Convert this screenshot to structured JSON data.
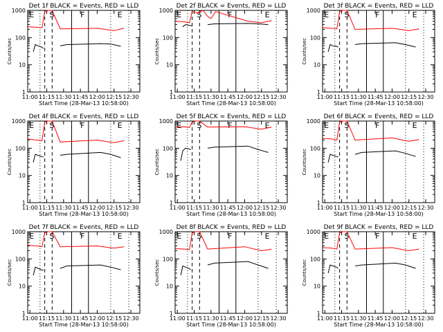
{
  "figure": {
    "title_template": "BLACK = Events, RED = LLD",
    "xlabel": "Start Time (28-Mar-13 10:58:00)",
    "ylabel": "Counts/sec",
    "x_tick_labels": [
      "11:00",
      "11:15",
      "11:30",
      "11:45",
      "12:00",
      "12:15",
      "12:30"
    ],
    "y_tick_labels": [
      "1",
      "10",
      "100",
      "1000"
    ],
    "colors": {
      "events": "#000000",
      "lld": "#ff0000",
      "background": "#ffffff"
    }
  },
  "chart_data": [
    {
      "type": "line",
      "title": "Det 1f BLACK = Events, RED = LLD",
      "detector": "Det 1f",
      "xlabel": "Start Time (28-Mar-13 10:58:00)",
      "ylabel": "Counts/sec",
      "yscale": "log",
      "ylim": [
        1,
        1000
      ],
      "xlim": [
        "10:58",
        "12:38"
      ],
      "region_labels": [
        "E",
        "S",
        "F",
        "E"
      ],
      "series": [
        {
          "name": "Events",
          "color": "#000000",
          "segments": [
            {
              "t": [
                11.05,
                11.08,
                11.12,
                11.17,
                11.2
              ],
              "v": [
                30,
                55,
                50,
                45,
                40
              ]
            },
            {
              "t": [
                11.45,
                11.55,
                12.05,
                12.2,
                12.35
              ],
              "v": [
                50,
                55,
                60,
                58,
                48
              ]
            }
          ]
        },
        {
          "name": "LLD",
          "color": "#ff0000",
          "segments": [
            {
              "t": [
                10.97,
                11.1,
                11.18,
                11.22,
                11.27,
                11.33,
                11.45,
                12.0,
                12.25,
                12.4
              ],
              "v": [
                250,
                240,
                230,
                900,
                1000,
                1000,
                210,
                220,
                180,
                220
              ]
            }
          ]
        }
      ]
    },
    {
      "type": "line",
      "title": "Det 2f BLACK = Events, RED = LLD",
      "detector": "Det 2f",
      "xlabel": "Start Time (28-Mar-13 10:58:00)",
      "ylabel": "Counts/sec",
      "yscale": "log",
      "ylim": [
        1,
        1000
      ],
      "xlim": [
        "10:58",
        "12:38"
      ],
      "region_labels": [
        "E",
        "S",
        "F",
        "E"
      ],
      "series": [
        {
          "name": "Events",
          "color": "#000000",
          "segments": [
            {
              "t": [
                11.08,
                11.12,
                11.18,
                11.22
              ],
              "v": [
                250,
                300,
                280,
                270
              ]
            },
            {
              "t": [
                11.45,
                11.55,
                12.05,
                12.2,
                12.35
              ],
              "v": [
                300,
                320,
                330,
                320,
                300
              ]
            }
          ]
        },
        {
          "name": "LLD",
          "color": "#ff0000",
          "segments": [
            {
              "t": [
                10.97,
                11.1,
                11.18,
                11.22,
                11.3,
                11.38,
                11.45,
                11.5,
                11.57,
                12.05,
                12.25,
                12.4
              ],
              "v": [
                400,
                380,
                350,
                900,
                800,
                1000,
                600,
                500,
                900,
                400,
                350,
                420
              ]
            }
          ]
        }
      ]
    },
    {
      "type": "line",
      "title": "Det 3f BLACK = Events, RED = LLD",
      "detector": "Det 3f",
      "xlabel": "Start Time (28-Mar-13 10:58:00)",
      "ylabel": "Counts/sec",
      "yscale": "log",
      "ylim": [
        1,
        1000
      ],
      "xlim": [
        "10:58",
        "12:38"
      ],
      "region_labels": [
        "E",
        "S",
        "F",
        "E"
      ],
      "series": [
        {
          "name": "Events",
          "color": "#000000",
          "segments": [
            {
              "t": [
                11.05,
                11.08,
                11.12,
                11.17,
                11.2
              ],
              "v": [
                30,
                55,
                50,
                48,
                45
              ]
            },
            {
              "t": [
                11.45,
                11.55,
                12.05,
                12.2,
                12.35
              ],
              "v": [
                55,
                60,
                65,
                55,
                45
              ]
            }
          ]
        },
        {
          "name": "LLD",
          "color": "#ff0000",
          "segments": [
            {
              "t": [
                10.97,
                11.1,
                11.18,
                11.22,
                11.27,
                11.33,
                11.45,
                12.0,
                12.25,
                12.4
              ],
              "v": [
                230,
                220,
                210,
                900,
                1000,
                1000,
                200,
                220,
                180,
                210
              ]
            }
          ]
        }
      ]
    },
    {
      "type": "line",
      "title": "Det 4f BLACK = Events, RED = LLD",
      "detector": "Det 4f",
      "xlabel": "Start Time (28-Mar-13 10:58:00)",
      "ylabel": "Counts/sec",
      "yscale": "log",
      "ylim": [
        1,
        1000
      ],
      "xlim": [
        "10:58",
        "12:38"
      ],
      "region_labels": [
        "E",
        "S",
        "F",
        "E"
      ],
      "series": [
        {
          "name": "Events",
          "color": "#000000",
          "segments": [
            {
              "t": [
                11.05,
                11.08,
                11.12,
                11.17,
                11.2
              ],
              "v": [
                30,
                60,
                55,
                50,
                48
              ]
            },
            {
              "t": [
                11.45,
                11.55,
                12.05,
                12.2,
                12.35
              ],
              "v": [
                55,
                60,
                70,
                60,
                45
              ]
            }
          ]
        },
        {
          "name": "LLD",
          "color": "#ff0000",
          "segments": [
            {
              "t": [
                10.97,
                11.1,
                11.18,
                11.22,
                11.27,
                11.33,
                11.45,
                12.0,
                12.25,
                12.4
              ],
              "v": [
                220,
                200,
                190,
                900,
                1000,
                1000,
                170,
                200,
                160,
                190
              ]
            }
          ]
        }
      ]
    },
    {
      "type": "line",
      "title": "Det 5f BLACK = Events, RED = LLD",
      "detector": "Det 5f",
      "xlabel": "Start Time (28-Mar-13 10:58:00)",
      "ylabel": "Counts/sec",
      "yscale": "log",
      "ylim": [
        1,
        1000
      ],
      "xlim": [
        "10:58",
        "12:38"
      ],
      "region_labels": [
        "E",
        "S",
        "F",
        "E"
      ],
      "series": [
        {
          "name": "Events",
          "color": "#000000",
          "segments": [
            {
              "t": [
                11.05,
                11.08,
                11.12,
                11.17,
                11.2
              ],
              "v": [
                35,
                80,
                100,
                95,
                90
              ]
            },
            {
              "t": [
                11.45,
                11.55,
                12.05,
                12.2,
                12.35
              ],
              "v": [
                100,
                110,
                120,
                90,
                70
              ]
            }
          ]
        },
        {
          "name": "LLD",
          "color": "#ff0000",
          "segments": [
            {
              "t": [
                10.97,
                11.1,
                11.18,
                11.22,
                11.27,
                11.33,
                11.45,
                12.0,
                12.25,
                12.4
              ],
              "v": [
                600,
                620,
                580,
                900,
                1000,
                1000,
                600,
                620,
                500,
                600
              ]
            }
          ]
        }
      ]
    },
    {
      "type": "line",
      "title": "Det 6f BLACK = Events, RED = LLD",
      "detector": "Det 6f",
      "xlabel": "Start Time (28-Mar-13 10:58:00)",
      "ylabel": "Counts/sec",
      "yscale": "log",
      "ylim": [
        1,
        1000
      ],
      "xlim": [
        "10:58",
        "12:38"
      ],
      "region_labels": [
        "E",
        "S",
        "F",
        "E"
      ],
      "series": [
        {
          "name": "Events",
          "color": "#000000",
          "segments": [
            {
              "t": [
                11.05,
                11.08,
                11.12,
                11.17,
                11.2
              ],
              "v": [
                30,
                60,
                55,
                50,
                48
              ]
            },
            {
              "t": [
                11.45,
                11.55,
                12.05,
                12.2,
                12.35
              ],
              "v": [
                60,
                70,
                80,
                65,
                50
              ]
            }
          ]
        },
        {
          "name": "LLD",
          "color": "#ff0000",
          "segments": [
            {
              "t": [
                10.97,
                11.1,
                11.18,
                11.22,
                11.27,
                11.33,
                11.45,
                12.0,
                12.25,
                12.4
              ],
              "v": [
                230,
                220,
                200,
                900,
                1000,
                1000,
                200,
                240,
                180,
                210
              ]
            }
          ]
        }
      ]
    },
    {
      "type": "line",
      "title": "Det 7f BLACK = Events, RED = LLD",
      "detector": "Det 7f",
      "xlabel": "Start Time (28-Mar-13 10:58:00)",
      "ylabel": "Counts/sec",
      "yscale": "log",
      "ylim": [
        1,
        1000
      ],
      "xlim": [
        "10:58",
        "12:38"
      ],
      "region_labels": [
        "E",
        "S",
        "F",
        "E"
      ],
      "series": [
        {
          "name": "Events",
          "color": "#000000",
          "segments": [
            {
              "t": [
                11.05,
                11.08,
                11.12,
                11.17,
                11.2
              ],
              "v": [
                25,
                50,
                45,
                40,
                38
              ]
            },
            {
              "t": [
                11.45,
                11.55,
                12.05,
                12.2,
                12.35
              ],
              "v": [
                45,
                55,
                60,
                50,
                40
              ]
            }
          ]
        },
        {
          "name": "LLD",
          "color": "#ff0000",
          "segments": [
            {
              "t": [
                10.97,
                11.1,
                11.18,
                11.22,
                11.27,
                11.33,
                11.45,
                12.0,
                12.25,
                12.4
              ],
              "v": [
                320,
                300,
                280,
                900,
                1000,
                1000,
                280,
                300,
                250,
                280
              ]
            }
          ]
        }
      ]
    },
    {
      "type": "line",
      "title": "Det 8f BLACK = Events, RED = LLD",
      "detector": "Det 8f",
      "xlabel": "Start Time (28-Mar-13 10:58:00)",
      "ylabel": "Counts/sec",
      "yscale": "log",
      "ylim": [
        1,
        1000
      ],
      "xlim": [
        "10:58",
        "12:38"
      ],
      "region_labels": [
        "E",
        "S",
        "F",
        "E"
      ],
      "series": [
        {
          "name": "Events",
          "color": "#000000",
          "segments": [
            {
              "t": [
                11.05,
                11.08,
                11.12,
                11.17,
                11.2
              ],
              "v": [
                25,
                55,
                50,
                45,
                40
              ]
            },
            {
              "t": [
                11.45,
                11.55,
                12.05,
                12.2,
                12.35
              ],
              "v": [
                60,
                70,
                80,
                60,
                45
              ]
            }
          ]
        },
        {
          "name": "LLD",
          "color": "#ff0000",
          "segments": [
            {
              "t": [
                10.97,
                11.1,
                11.18,
                11.22,
                11.27,
                11.33,
                11.45,
                12.0,
                12.25,
                12.4
              ],
              "v": [
                240,
                230,
                220,
                900,
                1000,
                1000,
                230,
                280,
                200,
                230
              ]
            }
          ]
        }
      ]
    },
    {
      "type": "line",
      "title": "Det 9f BLACK = Events, RED = LLD",
      "detector": "Det 9f",
      "xlabel": "Start Time (28-Mar-13 10:58:00)",
      "ylabel": "Counts/sec",
      "yscale": "log",
      "ylim": [
        1,
        1000
      ],
      "xlim": [
        "10:58",
        "12:38"
      ],
      "region_labels": [
        "E",
        "S",
        "F",
        "E"
      ],
      "series": [
        {
          "name": "Events",
          "color": "#000000",
          "segments": [
            {
              "t": [
                11.05,
                11.08,
                11.12,
                11.17,
                11.2
              ],
              "v": [
                30,
                60,
                55,
                50,
                45
              ]
            },
            {
              "t": [
                11.45,
                11.55,
                12.05,
                12.2,
                12.35
              ],
              "v": [
                55,
                60,
                70,
                60,
                45
              ]
            }
          ]
        },
        {
          "name": "LLD",
          "color": "#ff0000",
          "segments": [
            {
              "t": [
                10.97,
                11.1,
                11.18,
                11.22,
                11.27,
                11.33,
                11.45,
                12.0,
                12.25,
                12.4
              ],
              "v": [
                260,
                250,
                230,
                900,
                1000,
                1000,
                230,
                260,
                200,
                230
              ]
            }
          ]
        }
      ]
    }
  ]
}
